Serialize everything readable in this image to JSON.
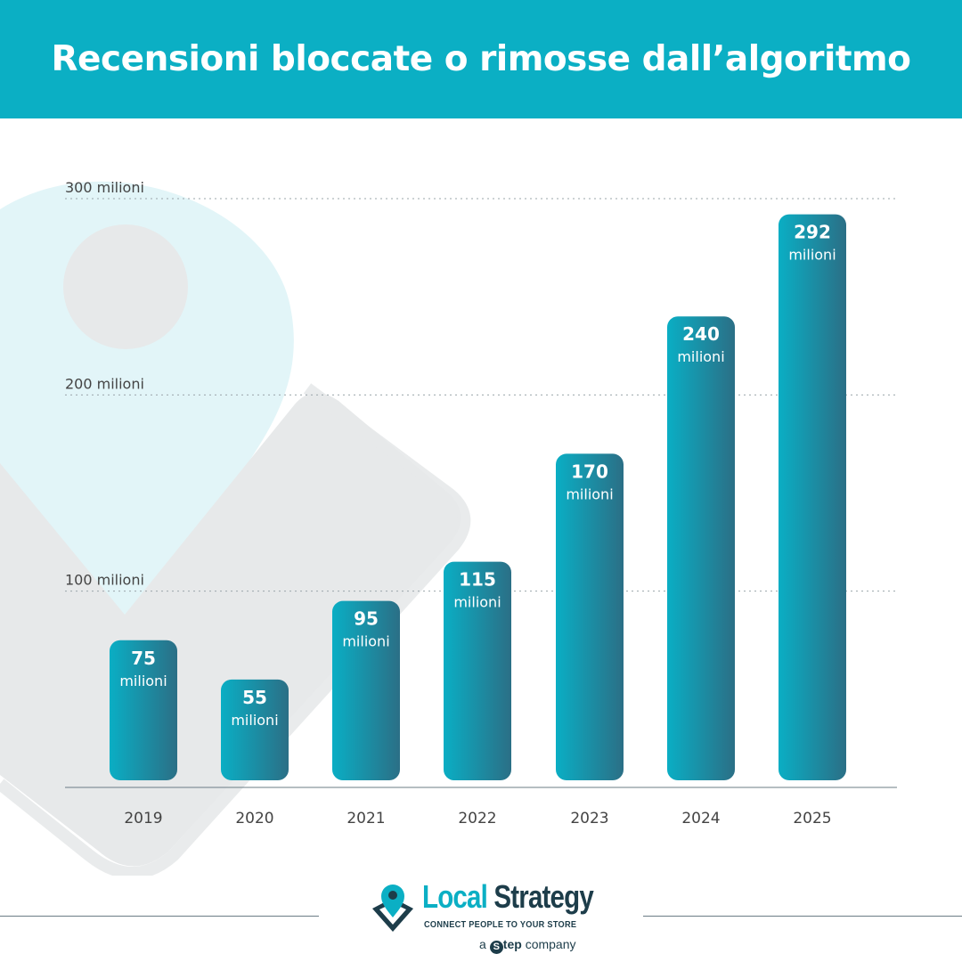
{
  "header": {
    "title": "Recensioni bloccate o rimosse dall’algoritmo"
  },
  "colors": {
    "header_bg": "#0bafc4",
    "bar_start": "#0aaec4",
    "bar_end": "#2b6f86",
    "grid": "#9aa5aa",
    "axis": "#6b7c85",
    "text_dark": "#444444",
    "pin_light": "#e2f5f8",
    "pin_gray": "#e7e9ea"
  },
  "chart_data": {
    "type": "bar",
    "title": "Recensioni bloccate o rimosse dall’algoritmo",
    "categories": [
      "2019",
      "2020",
      "2021",
      "2022",
      "2023",
      "2024",
      "2025"
    ],
    "values": [
      75,
      55,
      95,
      115,
      170,
      240,
      292
    ],
    "value_labels": [
      "75",
      "55",
      "95",
      "115",
      "170",
      "240",
      "292"
    ],
    "value_unit_label": "milioni",
    "yticks": [
      100,
      200,
      300
    ],
    "ytick_labels": [
      "100 milioni",
      "200 milioni",
      "300 milioni"
    ],
    "ylim": [
      0,
      300
    ],
    "grid": true
  },
  "logo": {
    "name_part1": "Local",
    "name_part2": "Strategy",
    "tagline": "CONNECT PEOPLE TO YOUR STORE",
    "sub_prefix": "a",
    "sub_s": "S",
    "sub_brand": "tep",
    "sub_suffix": "company"
  }
}
